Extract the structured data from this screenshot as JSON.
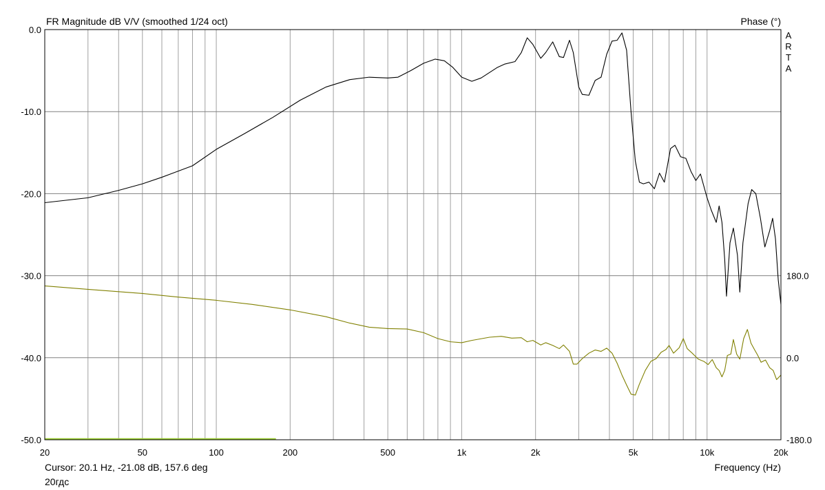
{
  "chart_data": {
    "type": "line",
    "title": "FR Magnitude dB V/V (smoothed 1/24 oct)",
    "right_axis_title": "Phase (°)",
    "brand": "ARTA",
    "xlabel": "Frequency (Hz)",
    "x_scale": "log",
    "xlim": [
      20,
      20000
    ],
    "x_ticks": [
      {
        "value": 20,
        "label": "20"
      },
      {
        "value": 50,
        "label": "50"
      },
      {
        "value": 100,
        "label": "100"
      },
      {
        "value": 200,
        "label": "200"
      },
      {
        "value": 500,
        "label": "500"
      },
      {
        "value": 1000,
        "label": "1k"
      },
      {
        "value": 2000,
        "label": "2k"
      },
      {
        "value": 5000,
        "label": "5k"
      },
      {
        "value": 10000,
        "label": "10k"
      },
      {
        "value": 20000,
        "label": "20k"
      }
    ],
    "ylim": [
      -50,
      0
    ],
    "y_ticks": [
      {
        "value": 0,
        "label": "0.0"
      },
      {
        "value": -10,
        "label": "-10.0"
      },
      {
        "value": -20,
        "label": "-20.0"
      },
      {
        "value": -30,
        "label": "-30.0"
      },
      {
        "value": -40,
        "label": "-40.0"
      },
      {
        "value": -50,
        "label": "-50.0"
      }
    ],
    "y2lim": [
      -180,
      180
    ],
    "y2_range_db": [
      -50,
      -30
    ],
    "y2_ticks": [
      {
        "value": 180,
        "label": "180.0"
      },
      {
        "value": 0,
        "label": "0.0"
      },
      {
        "value": -180,
        "label": "-180.0"
      }
    ],
    "grid": true,
    "series": [
      {
        "name": "",
        "color": "#000000",
        "axis": "left",
        "points": [
          [
            20,
            -21.1
          ],
          [
            30,
            -20.5
          ],
          [
            40,
            -19.6
          ],
          [
            50,
            -18.8
          ],
          [
            60,
            -18.0
          ],
          [
            80,
            -16.6
          ],
          [
            100,
            -14.6
          ],
          [
            130,
            -12.7
          ],
          [
            170,
            -10.7
          ],
          [
            220,
            -8.6
          ],
          [
            280,
            -7.0
          ],
          [
            350,
            -6.1
          ],
          [
            420,
            -5.8
          ],
          [
            500,
            -5.9
          ],
          [
            550,
            -5.8
          ],
          [
            620,
            -5.0
          ],
          [
            700,
            -4.1
          ],
          [
            780,
            -3.6
          ],
          [
            850,
            -3.8
          ],
          [
            920,
            -4.6
          ],
          [
            1000,
            -5.8
          ],
          [
            1100,
            -6.3
          ],
          [
            1200,
            -5.9
          ],
          [
            1400,
            -4.6
          ],
          [
            1500,
            -4.2
          ],
          [
            1650,
            -3.9
          ],
          [
            1750,
            -2.8
          ],
          [
            1850,
            -1.0
          ],
          [
            1950,
            -1.8
          ],
          [
            2100,
            -3.5
          ],
          [
            2200,
            -2.8
          ],
          [
            2350,
            -1.5
          ],
          [
            2500,
            -3.3
          ],
          [
            2600,
            -3.4
          ],
          [
            2750,
            -1.3
          ],
          [
            2850,
            -2.8
          ],
          [
            3000,
            -7.0
          ],
          [
            3100,
            -7.9
          ],
          [
            3300,
            -8.0
          ],
          [
            3500,
            -6.2
          ],
          [
            3700,
            -5.8
          ],
          [
            3900,
            -3.0
          ],
          [
            4100,
            -1.4
          ],
          [
            4300,
            -1.3
          ],
          [
            4500,
            -0.4
          ],
          [
            4700,
            -2.5
          ],
          [
            4900,
            -10.0
          ],
          [
            5100,
            -16.0
          ],
          [
            5300,
            -18.6
          ],
          [
            5500,
            -18.8
          ],
          [
            5800,
            -18.6
          ],
          [
            6100,
            -19.4
          ],
          [
            6400,
            -17.5
          ],
          [
            6700,
            -18.6
          ],
          [
            7100,
            -14.5
          ],
          [
            7400,
            -14.1
          ],
          [
            7800,
            -15.5
          ],
          [
            8200,
            -15.7
          ],
          [
            8600,
            -17.3
          ],
          [
            9000,
            -18.4
          ],
          [
            9400,
            -17.6
          ],
          [
            10000,
            -20.5
          ],
          [
            10400,
            -22.0
          ],
          [
            10900,
            -23.5
          ],
          [
            11200,
            -21.5
          ],
          [
            11500,
            -23.5
          ],
          [
            11800,
            -28.0
          ],
          [
            12000,
            -32.5
          ],
          [
            12400,
            -26.0
          ],
          [
            12800,
            -24.2
          ],
          [
            13300,
            -27.5
          ],
          [
            13600,
            -32.0
          ],
          [
            14000,
            -26.0
          ],
          [
            14700,
            -21.2
          ],
          [
            15200,
            -19.5
          ],
          [
            15800,
            -20.0
          ],
          [
            16500,
            -23.0
          ],
          [
            17200,
            -26.5
          ],
          [
            18000,
            -24.5
          ],
          [
            18500,
            -23.0
          ],
          [
            19000,
            -25.5
          ],
          [
            19500,
            -30.5
          ],
          [
            20000,
            -33.5
          ]
        ]
      },
      {
        "name": "",
        "color": "#808000",
        "axis": "right",
        "points": [
          [
            20,
            157.6
          ],
          [
            30,
            150
          ],
          [
            50,
            141
          ],
          [
            70,
            133
          ],
          [
            100,
            126
          ],
          [
            140,
            117
          ],
          [
            200,
            105
          ],
          [
            280,
            90
          ],
          [
            350,
            76
          ],
          [
            420,
            67
          ],
          [
            500,
            64
          ],
          [
            600,
            63
          ],
          [
            700,
            55
          ],
          [
            800,
            42
          ],
          [
            900,
            35
          ],
          [
            1000,
            33
          ],
          [
            1100,
            38
          ],
          [
            1300,
            45
          ],
          [
            1450,
            47
          ],
          [
            1600,
            43
          ],
          [
            1750,
            44
          ],
          [
            1850,
            35
          ],
          [
            1950,
            38
          ],
          [
            2100,
            28
          ],
          [
            2200,
            33
          ],
          [
            2350,
            27
          ],
          [
            2500,
            20
          ],
          [
            2600,
            28
          ],
          [
            2750,
            14
          ],
          [
            2850,
            -14
          ],
          [
            2950,
            -14
          ],
          [
            3100,
            -2
          ],
          [
            3300,
            10
          ],
          [
            3500,
            17
          ],
          [
            3700,
            14
          ],
          [
            3900,
            21
          ],
          [
            4100,
            10
          ],
          [
            4300,
            -12
          ],
          [
            4500,
            -38
          ],
          [
            4700,
            -60
          ],
          [
            4900,
            -80
          ],
          [
            5100,
            -82
          ],
          [
            5300,
            -58
          ],
          [
            5600,
            -28
          ],
          [
            5900,
            -8
          ],
          [
            6200,
            -2
          ],
          [
            6500,
            12
          ],
          [
            6800,
            18
          ],
          [
            7000,
            27
          ],
          [
            7300,
            10
          ],
          [
            7700,
            22
          ],
          [
            8000,
            42
          ],
          [
            8300,
            20
          ],
          [
            8700,
            10
          ],
          [
            9200,
            -3
          ],
          [
            9700,
            -8
          ],
          [
            10100,
            -15
          ],
          [
            10500,
            -4
          ],
          [
            10900,
            -22
          ],
          [
            11200,
            -28
          ],
          [
            11500,
            -42
          ],
          [
            11800,
            -28
          ],
          [
            12100,
            5
          ],
          [
            12500,
            8
          ],
          [
            12800,
            40
          ],
          [
            13200,
            8
          ],
          [
            13600,
            -3
          ],
          [
            14100,
            42
          ],
          [
            14600,
            62
          ],
          [
            15100,
            32
          ],
          [
            15600,
            18
          ],
          [
            16100,
            5
          ],
          [
            16600,
            -10
          ],
          [
            17300,
            -5
          ],
          [
            18000,
            -22
          ],
          [
            18600,
            -28
          ],
          [
            19200,
            -48
          ],
          [
            20000,
            -38
          ]
        ]
      },
      {
        "name": "",
        "color": "#9acd32",
        "axis": "left",
        "points": [
          [
            20,
            -49.9
          ],
          [
            175,
            -49.9
          ]
        ]
      }
    ]
  },
  "status": {
    "cursor": "Cursor: 20.1 Hz, -21.08 dB, 157.6 deg",
    "name": "20гдс"
  }
}
